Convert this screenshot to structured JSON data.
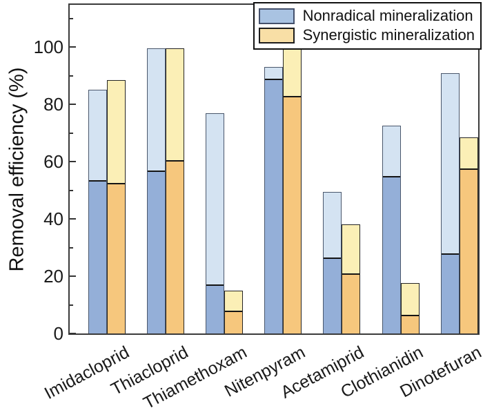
{
  "chart_data": {
    "type": "bar",
    "title": "",
    "xlabel": "",
    "ylabel": "Removal efficiency (%)",
    "ylim": [
      0,
      114.75
    ],
    "yticks_major": [
      0,
      20,
      40,
      60,
      80,
      100
    ],
    "yticks_minor": [
      10,
      30,
      50,
      70,
      90,
      110
    ],
    "grid": false,
    "legend_position": "top-right",
    "categories": [
      "Imidacloprid",
      "Thiacloprid",
      "Thiamethoxam",
      "Nitenpyram",
      "Acetamiprid",
      "Clothianidin",
      "Dinotefuran"
    ],
    "series": [
      {
        "id": "nonradical-total-removal",
        "legend_label": null,
        "color": "#d4e3f2",
        "values": [
          85,
          99.5,
          77,
          93,
          49.5,
          72.5,
          91
        ]
      },
      {
        "id": "nonradical-mineralization",
        "legend_label": "Nonradical mineralization",
        "color": "#94afd8",
        "values": [
          53.5,
          57,
          17,
          89,
          26.5,
          55,
          28
        ]
      },
      {
        "id": "synergistic-total-removal",
        "legend_label": null,
        "color": "#fbefb6",
        "values": [
          88.5,
          99.5,
          15,
          100,
          38,
          17.5,
          68.5
        ]
      },
      {
        "id": "synergistic-mineralization",
        "legend_label": "Synergistic mineralization",
        "color": "#f6c77d",
        "values": [
          52.5,
          60.5,
          8,
          83,
          21,
          6.5,
          57.5
        ]
      }
    ],
    "legend": [
      {
        "label": "Nonradical mineralization",
        "swatch_color": "#a9c3e2"
      },
      {
        "label": "Synergistic mineralization",
        "swatch_color": "#f8dfa6"
      }
    ],
    "colors": {
      "blue_light": "#d4e3f2",
      "blue_dark": "#94afd8",
      "blue_border": "#49566b",
      "yellow_light": "#fbefb6",
      "orange_dark": "#f6c77d",
      "yellow_border": "#242424",
      "segment_divider": "#141414",
      "axis": "#3a3a3a"
    }
  }
}
